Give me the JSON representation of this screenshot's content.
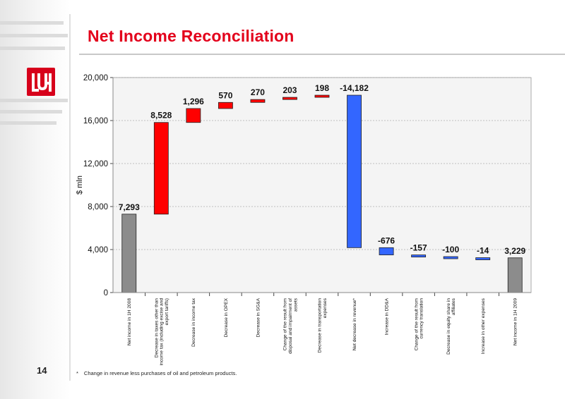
{
  "title": "Net Income Reconciliation",
  "page_number": "14",
  "footnote": {
    "mark": "*",
    "text": "Change in revenue less purchases of oil and petroleum products."
  },
  "logo": {
    "text": "LUK",
    "color": "#d7001b"
  },
  "colors": {
    "total": "#8c8c8c",
    "increase": "#ff0000",
    "decrease": "#3366ff",
    "accent": "#e3001b"
  },
  "chart_data": {
    "type": "bar",
    "subtype": "waterfall",
    "ylabel": "$ mln",
    "ylim": [
      0,
      20000
    ],
    "yticks": [
      0,
      4000,
      8000,
      12000,
      16000,
      20000
    ],
    "ytick_labels": [
      "0",
      "4,000",
      "8,000",
      "12,000",
      "16,000",
      "20,000"
    ],
    "grid": true,
    "categories": [
      "Net income in 1H 2008",
      "Decrease in taxes other than income tax (including excise and export tariffs)",
      "Decrease in income tax",
      "Decrease in OPEX",
      "Decrease in SG&A",
      "Change of the result from disposal and impairment of assets",
      "Decrease in transportation expenses",
      "Net decrease in revenue*",
      "Increase in DD&A",
      "Change of the result from currency translation",
      "Decrease in equity share in affiliates",
      "Increase in other expenses",
      "Net income in 1H 2009"
    ],
    "category_lines": [
      [
        "Net income in 1H 2008"
      ],
      [
        "Decrease in taxes other than",
        "income tax (including excise and",
        "export tariffs)"
      ],
      [
        "Decrease in income tax"
      ],
      [
        "Decrease in OPEX"
      ],
      [
        "Decrease in SG&A"
      ],
      [
        "Change of the result from",
        "disposal and impairment of",
        "assets"
      ],
      [
        "Decrease in transportation",
        "expenses"
      ],
      [
        "Net decrease in revenue*"
      ],
      [
        "Increase in DD&A"
      ],
      [
        "Change of the result from",
        "currency translation"
      ],
      [
        "Decrease in equity share in",
        "affiliates"
      ],
      [
        "Increase in other expenses"
      ],
      [
        "Net income in 1H 2009"
      ]
    ],
    "values": [
      7293,
      8528,
      1296,
      570,
      270,
      203,
      198,
      -14182,
      -676,
      -157,
      -100,
      -14,
      3229
    ],
    "value_labels": [
      "7,293",
      "8,528",
      "1,296",
      "570",
      "270",
      "203",
      "198",
      "-14,182",
      "-676",
      "-157",
      "-100",
      "-14",
      "3,229"
    ],
    "kinds": [
      "total",
      "increase",
      "increase",
      "increase",
      "increase",
      "increase",
      "increase",
      "decrease",
      "decrease",
      "decrease",
      "decrease",
      "decrease",
      "total"
    ]
  }
}
